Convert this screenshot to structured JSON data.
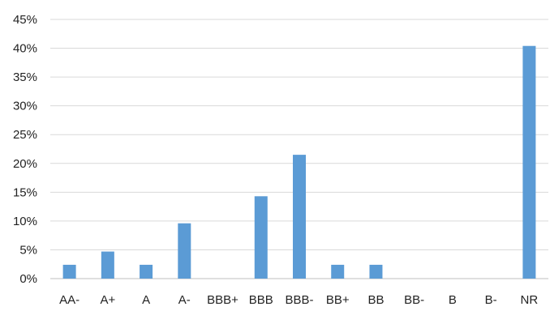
{
  "chart_data": {
    "type": "bar",
    "title": "",
    "xlabel": "",
    "ylabel": "",
    "categories": [
      "AA-",
      "A+",
      "A",
      "A-",
      "BBB+",
      "BBB",
      "BBB-",
      "BB+",
      "BB",
      "BB-",
      "B",
      "B-",
      "NR"
    ],
    "values": [
      0.024,
      0.047,
      0.024,
      0.096,
      0.0,
      0.143,
      0.215,
      0.024,
      0.024,
      0.0,
      0.0,
      0.0,
      0.404
    ],
    "ylim": [
      0,
      0.45
    ],
    "yticks": [
      0,
      0.05,
      0.1,
      0.15,
      0.2,
      0.25,
      0.3,
      0.35,
      0.4,
      0.45
    ],
    "ytick_labels": [
      "0%",
      "5%",
      "10%",
      "15%",
      "20%",
      "25%",
      "30%",
      "35%",
      "40%",
      "45%"
    ],
    "grid": true,
    "bar_color": "#5b9bd5",
    "grid_color": "#d9d9d9"
  }
}
